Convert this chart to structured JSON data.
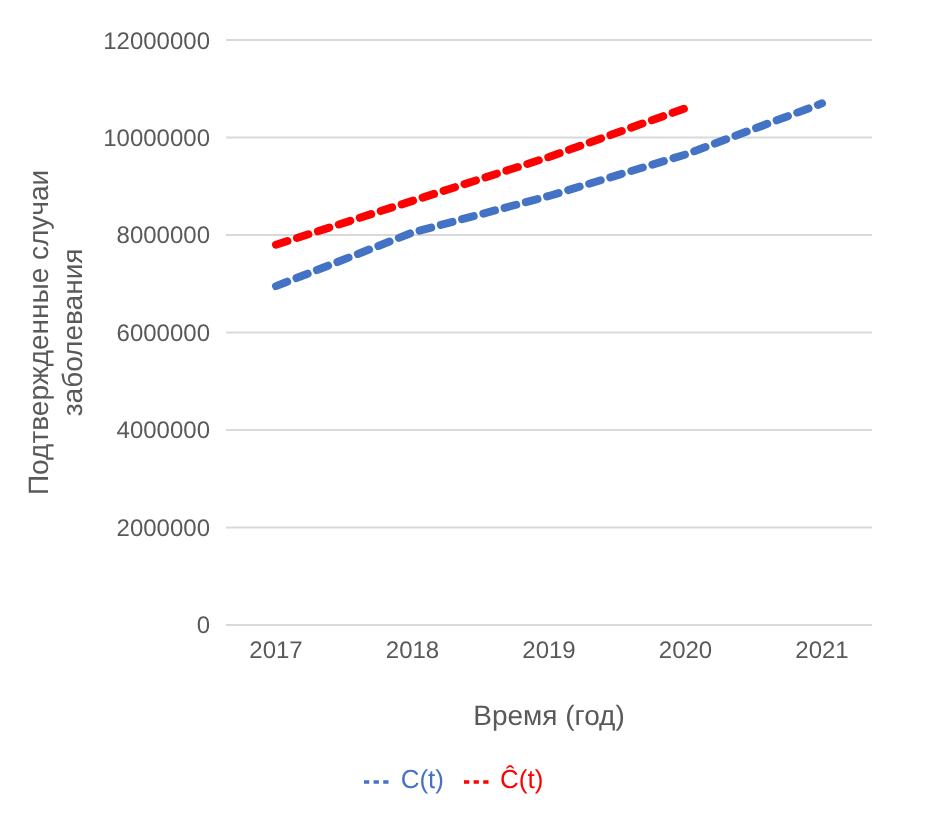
{
  "chart_data": {
    "type": "line",
    "xlabel": "Время (год)",
    "ylabel": "Подтвержденные случаи заболевания",
    "categories": [
      "2017",
      "2018",
      "2019",
      "2020",
      "2021"
    ],
    "series": [
      {
        "name": "C(t)",
        "color": "#4472c4",
        "values": [
          6950000,
          8050000,
          8800000,
          9650000,
          10700000
        ]
      },
      {
        "name": "Ĉ(t)",
        "color": "#ff0000",
        "values": [
          7800000,
          8700000,
          9600000,
          10600000,
          null
        ]
      }
    ],
    "ylim": [
      0,
      12000000
    ],
    "yticks": [
      0,
      2000000,
      4000000,
      6000000,
      8000000,
      10000000,
      12000000
    ],
    "grid": "y",
    "legend": "bottom",
    "marker": "none",
    "line_style": "dashed"
  }
}
